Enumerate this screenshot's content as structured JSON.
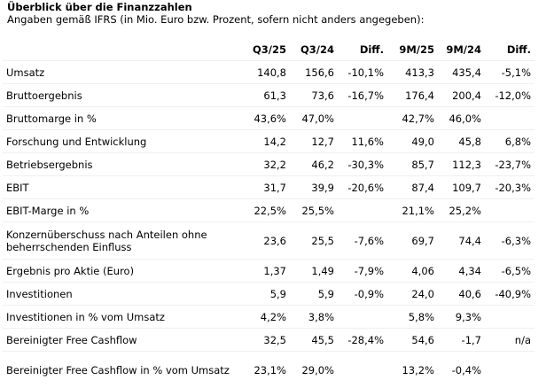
{
  "header": {
    "title": "Überblick über die Finanzzahlen",
    "subtitle": "Angaben gemäß IFRS (in Mio. Euro bzw. Prozent, sofern nicht anders angegeben):"
  },
  "table": {
    "columns": [
      "Q3/25",
      "Q3/24",
      "Diff.",
      "9M/25",
      "9M/24",
      "Diff."
    ],
    "rows": [
      [
        "Umsatz",
        "140,8",
        "156,6",
        "-10,1%",
        "413,3",
        "435,4",
        "-5,1%"
      ],
      [
        "Bruttoergebnis",
        "61,3",
        "73,6",
        "-16,7%",
        "176,4",
        "200,4",
        "-12,0%"
      ],
      [
        "Bruttomarge in %",
        "43,6%",
        "47,0%",
        null,
        "42,7%",
        "46,0%",
        null
      ],
      [
        "Forschung und Entwicklung",
        "14,2",
        "12,7",
        "11,6%",
        "49,0",
        "45,8",
        "6,8%"
      ],
      [
        "Betriebsergebnis",
        "32,2",
        "46,2",
        "-30,3%",
        "85,7",
        "112,3",
        "-23,7%"
      ],
      [
        "EBIT",
        "31,7",
        "39,9",
        "-20,6%",
        "87,4",
        "109,7",
        "-20,3%"
      ],
      [
        "EBIT-Marge in %",
        "22,5%",
        "25,5%",
        null,
        "21,1%",
        "25,2%",
        null
      ],
      [
        "Konzernüberschuss nach Anteilen ohne beherrschenden Einfluss",
        "23,6",
        "25,5",
        "-7,6%",
        "69,7",
        "74,4",
        "-6,3%"
      ],
      [
        "Ergebnis pro Aktie (Euro)",
        "1,37",
        "1,49",
        "-7,9%",
        "4,06",
        "4,34",
        "-6,5%"
      ],
      [
        "Investitionen",
        "5,9",
        "5,9",
        "-0,9%",
        "24,0",
        "40,6",
        "-40,9%"
      ],
      [
        "Investitionen in % vom Umsatz",
        "4,2%",
        "3,8%",
        null,
        "5,8%",
        "9,3%",
        null
      ],
      [
        "Bereinigter Free Cashflow",
        "32,5",
        "45,5",
        "-28,4%",
        "54,6",
        "-1,7",
        "n/a"
      ],
      [
        "Bereinigter Free Cashflow in % vom Umsatz",
        "23,1%",
        "29,0%",
        null,
        "13,2%",
        "-0,4%",
        null
      ]
    ]
  }
}
